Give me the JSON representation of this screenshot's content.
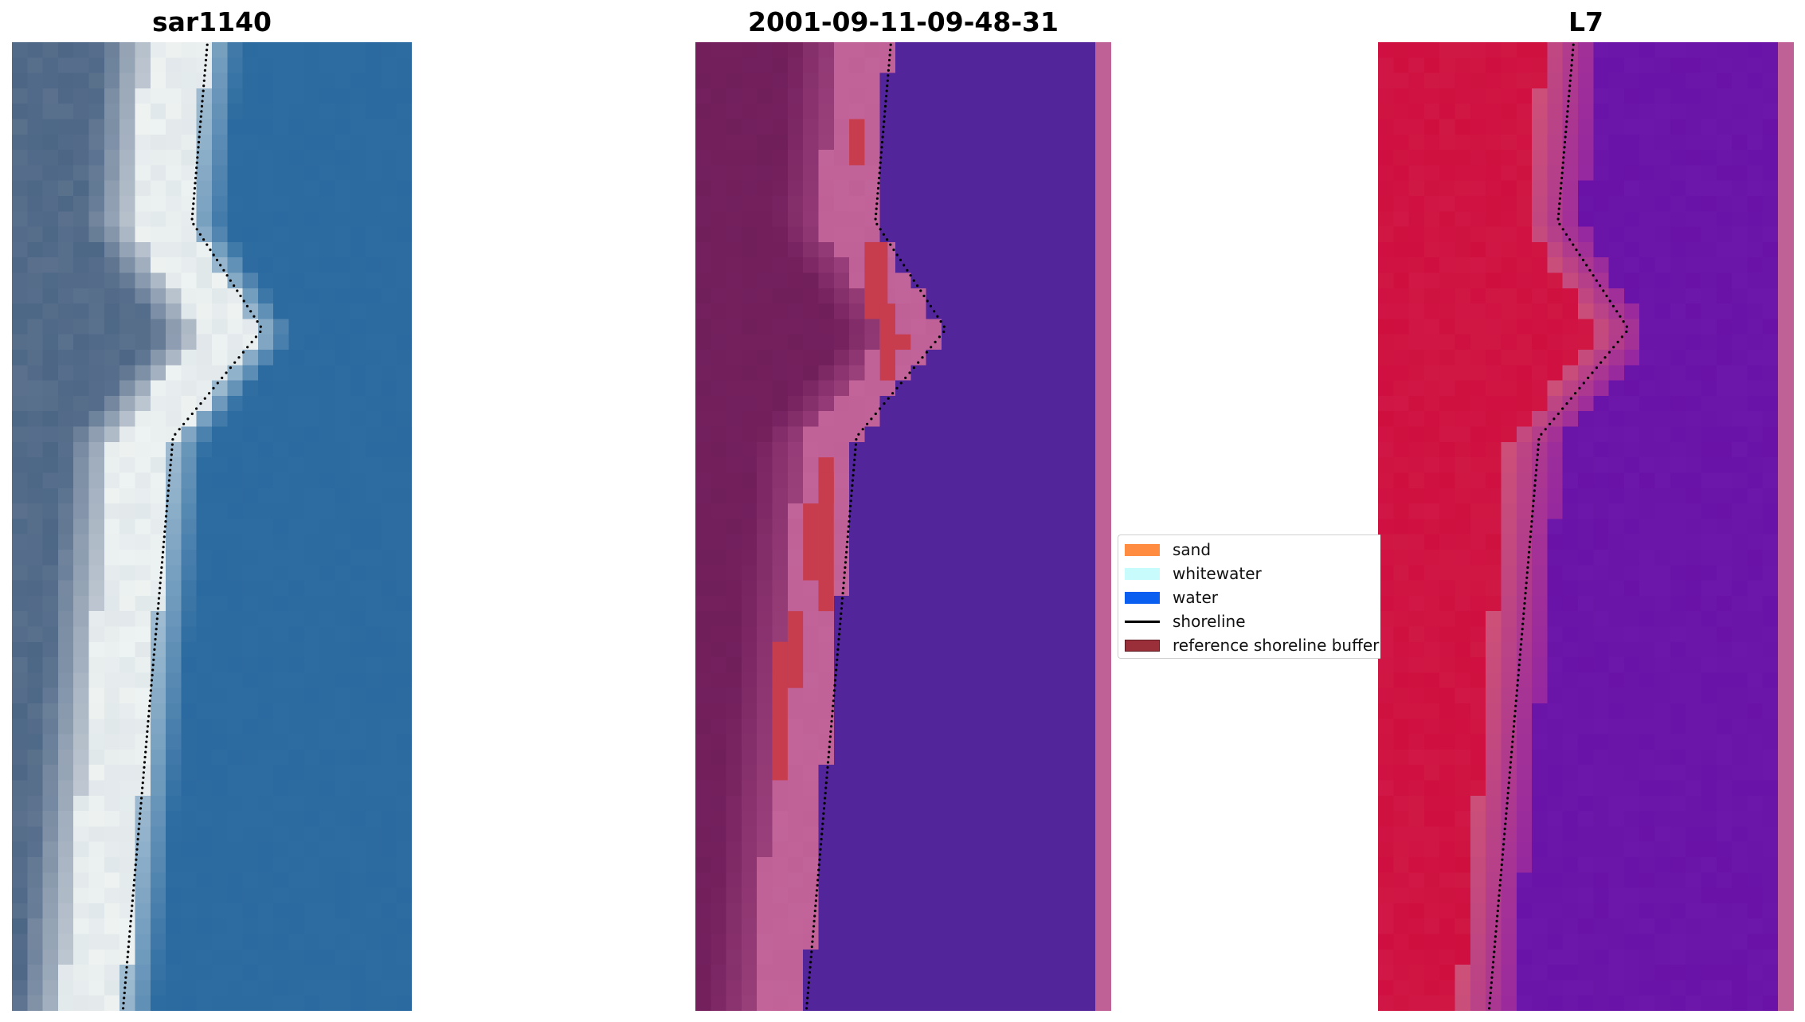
{
  "panels": [
    {
      "title": "sar1140",
      "kind": "rgb"
    },
    {
      "title": "2001-09-11-09-48-31",
      "kind": "classified"
    },
    {
      "title": "L7",
      "kind": "mndwi"
    }
  ],
  "legend": [
    {
      "label": "sand",
      "type": "patch",
      "color": "#ff8c40"
    },
    {
      "label": "whitewater",
      "type": "patch",
      "color": "#c8fbfb"
    },
    {
      "label": "water",
      "type": "patch",
      "color": "#0a5ff0"
    },
    {
      "label": "shoreline",
      "type": "line",
      "color": "#000000"
    },
    {
      "label": "reference shoreline buffer",
      "type": "patch",
      "color": "#9a2f3a"
    }
  ],
  "colors": {
    "rgb_water": "#2b6aa0",
    "rgb_foam": "#eef3f2",
    "rgb_land": "#4c6686",
    "class_water": "#53259a",
    "class_land": "#74205f",
    "class_buffer": "#bf6097",
    "class_red": "#c73d4d",
    "mndwi_land": "#cf0f3f",
    "mndwi_water": "#6a12a8",
    "shoreline": "#000000"
  }
}
